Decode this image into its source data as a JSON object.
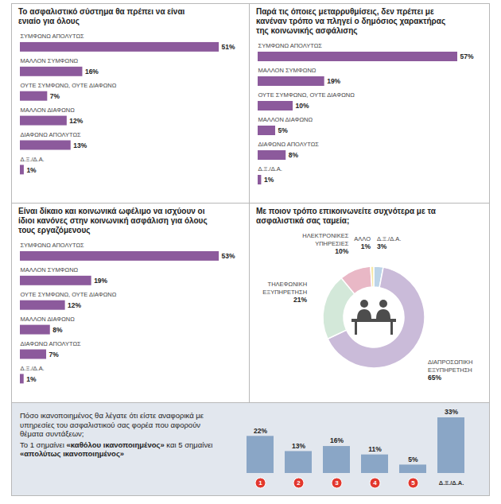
{
  "chart_data": [
    {
      "type": "bar",
      "orientation": "horizontal",
      "title": "Το ασφαλιστικό σύστημα θα πρέπει να είναι ενιαίο για όλους",
      "categories": [
        "ΣΥΜΦΩΝΩ ΑΠΟΛΥΤΩΣ",
        "ΜΑΛΛΟΝ ΣΥΜΦΩΝΩ",
        "ΟΥΤΕ ΣΥΜΦΩΝΩ, ΟΥΤΕ ΔΙΑΦΩΝΩ",
        "ΜΑΛΛΟΝ ΔΙΑΦΩΝΩ",
        "ΔΙΑΦΩΝΩ ΑΠΟΛΥΤΩΣ",
        "Δ.Ξ./Δ.Α."
      ],
      "values": [
        51,
        16,
        7,
        12,
        13,
        1
      ],
      "value_labels": [
        "51%",
        "16%",
        "7%",
        "12%",
        "13%",
        "1%"
      ],
      "color": "#8c5a9c",
      "data_labels": true,
      "tick_labels": "y"
    },
    {
      "type": "bar",
      "orientation": "horizontal",
      "title": "Παρά τις όποιες μεταρρυθμίσεις, δεν πρέπει με κανέναν τρόπο να πληγεί ο δημόσιος χαρακτήρας της κοινωνικής ασφάλισης",
      "categories": [
        "ΣΥΜΦΩΝΩ ΑΠΟΛΥΤΩΣ",
        "ΜΑΛΛΟΝ ΣΥΜΦΩΝΩ",
        "ΟΥΤΕ ΣΥΜΦΩΝΩ, ΟΥΤΕ ΔΙΑΦΩΝΩ",
        "ΜΑΛΛΟΝ ΔΙΑΦΩΝΩ",
        "ΔΙΑΦΩΝΩ ΑΠΟΛΥΤΩΣ",
        "Δ.Ξ./Δ.Α."
      ],
      "values": [
        57,
        19,
        10,
        5,
        8,
        1
      ],
      "value_labels": [
        "57%",
        "19%",
        "10%",
        "5%",
        "8%",
        "1%"
      ],
      "color": "#8c5a9c",
      "data_labels": true,
      "tick_labels": "y"
    },
    {
      "type": "bar",
      "orientation": "horizontal",
      "title": "Είναι δίκαιο και κοινωνικά ωφέλιμο να ισχύουν οι ίδιοι κανόνες στην κοινωνική ασφάλιση για όλους τους εργαζόμενους",
      "categories": [
        "ΣΥΜΦΩΝΩ ΑΠΟΛΥΤΩΣ",
        "ΜΑΛΛΟΝ ΣΥΜΦΩΝΩ",
        "ΟΥΤΕ ΣΥΜΦΩΝΩ, ΟΥΤΕ ΔΙΑΦΩΝΩ",
        "ΜΑΛΛΟΝ ΔΙΑΦΩΝΩ",
        "ΔΙΑΦΩΝΩ ΑΠΟΛΥΤΩΣ",
        "Δ.Ξ./Δ.Α."
      ],
      "values": [
        53,
        19,
        12,
        8,
        7,
        1
      ],
      "value_labels": [
        "53%",
        "19%",
        "12%",
        "8%",
        "7%",
        "1%"
      ],
      "color": "#8c5a9c",
      "data_labels": true,
      "tick_labels": "y"
    },
    {
      "type": "pie",
      "title": "Με ποιον τρόπο επικοινωνείτε συχνότερα με τα ασφαλιστικά σας ταμεία;",
      "categories": [
        "Δ.Ξ./Δ.Α.",
        "ΔΙΑΠΡΟΣΩΠΙΚΗ ΕΞΥΠΗΡΕΤΗΣΗ",
        "ΤΗΛΕΦΩΝΙΚΗ ΕΞΥΠΗΡΕΤΗΣΗ",
        "ΗΛΕΚΤΡΟΝΙΚΕΣ ΥΠΗΡΕΣΙΕΣ",
        "ΑΛΛΟ"
      ],
      "values": [
        3,
        65,
        21,
        10,
        1
      ],
      "value_labels": [
        "3%",
        "65%",
        "21%",
        "10%",
        "1%"
      ],
      "colors": [
        "#bcd4e8",
        "#cabbd9",
        "#d3e8d9",
        "#e9b8c6",
        "#f6e7a6"
      ],
      "data_labels": true
    },
    {
      "type": "bar",
      "title": "Πόσο ικανοποιημένος θα λέγατε ότι είστε αναφορικά με υπηρεσίες του ασφαλιστικού σας φορέα που αφορούν θέματα συντάξεων;",
      "subtitle": "Το 1 σημαίνει «καθόλου ικανοποιημένος» και 5 σημαίνει «απολύτως ικανοποιημένος»",
      "categories": [
        "1",
        "2",
        "3",
        "4",
        "5",
        "Δ.Ξ./Δ.Α."
      ],
      "values": [
        22,
        13,
        16,
        11,
        5,
        33
      ],
      "value_labels": [
        "22%",
        "13%",
        "16%",
        "11%",
        "5%",
        "33%"
      ],
      "color": "#8aa6c6",
      "data_labels": true,
      "tick_labels": "x"
    }
  ]
}
